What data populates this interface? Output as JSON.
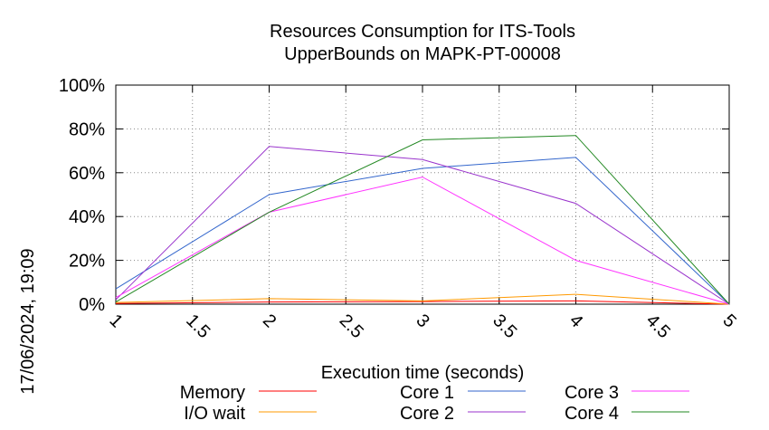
{
  "chart_data": {
    "type": "line",
    "title_line1": "Resources Consumption for ITS-Tools",
    "title_line2": "UpperBounds on MAPK-PT-00008",
    "xlabel": "Execution time (seconds)",
    "ylabel": "",
    "side_label": "17/06/2024, 19:09",
    "xlim": [
      1,
      5
    ],
    "ylim": [
      0,
      100
    ],
    "grid": true,
    "legend_position": "bottom",
    "x_ticks": [
      "1",
      "1.5",
      "2",
      "2.5",
      "3",
      "3.5",
      "4",
      "4.5",
      "5"
    ],
    "y_ticks": [
      "0%",
      "20%",
      "40%",
      "60%",
      "80%",
      "100%"
    ],
    "series": [
      {
        "name": "Memory",
        "color": "#ff0000",
        "x": [
          1,
          2,
          3,
          4,
          5
        ],
        "values": [
          0.3,
          1.0,
          1.2,
          1.5,
          0
        ]
      },
      {
        "name": "I/O wait",
        "color": "#ff9900",
        "x": [
          1,
          2,
          3,
          4,
          5
        ],
        "values": [
          0.8,
          2.5,
          1.5,
          4.5,
          0
        ]
      },
      {
        "name": "Core 1",
        "color": "#3366cc",
        "x": [
          1,
          2,
          3,
          4,
          5
        ],
        "values": [
          7,
          50,
          62,
          67,
          0
        ]
      },
      {
        "name": "Core 2",
        "color": "#9933cc",
        "x": [
          1,
          2,
          3,
          4,
          5
        ],
        "values": [
          2,
          72,
          66,
          46,
          0
        ]
      },
      {
        "name": "Core 3",
        "color": "#ff33ff",
        "x": [
          1,
          2,
          3,
          4,
          5
        ],
        "values": [
          3,
          42,
          58,
          20,
          0
        ]
      },
      {
        "name": "Core 4",
        "color": "#228822",
        "x": [
          1,
          2,
          3,
          4,
          5
        ],
        "values": [
          1,
          42,
          75,
          77,
          0
        ]
      }
    ]
  }
}
